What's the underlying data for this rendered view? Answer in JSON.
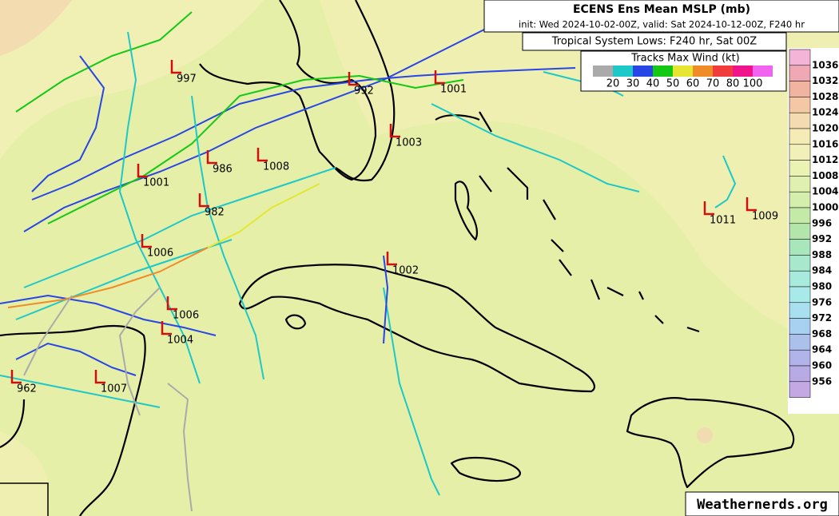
{
  "header": {
    "title": "ECENS Ens Mean MSLP (mb)",
    "subtitle": "init: Wed 2024-10-02-00Z, valid: Sat 2024-10-12-00Z, F240 hr"
  },
  "panel_title": "Tropical System Lows: F240 hr, Sat 00Z",
  "wind_legend": {
    "title": "Tracks Max Wind (kt)",
    "colors": [
      "#aaaaaa",
      "#1ec8c8",
      "#2846e6",
      "#14c814",
      "#e6e632",
      "#f08c28",
      "#f03c3c",
      "#f0148c",
      "#f064f0"
    ],
    "labels": [
      20,
      30,
      40,
      50,
      60,
      70,
      80,
      100
    ]
  },
  "pressure_scale": {
    "colors": [
      "#f4b4d8",
      "#f0a8b4",
      "#f0b4a0",
      "#f4c8a4",
      "#f4dcb0",
      "#f4ecb4",
      "#f0f0b8",
      "#eaf2b4",
      "#e0f0b0",
      "#d4eeac",
      "#c4eaa8",
      "#b4e6ac",
      "#a8e6bc",
      "#a8e8cc",
      "#a8eadc",
      "#a8eaea",
      "#a8e0f0",
      "#a8d0f0",
      "#acc0ec",
      "#b0b4e8",
      "#b8aae4",
      "#c4a8e4"
    ],
    "labels": [
      1036,
      1032,
      1028,
      1024,
      1020,
      1016,
      1012,
      1008,
      1004,
      1000,
      996,
      992,
      988,
      984,
      980,
      976,
      972,
      968,
      964,
      960,
      956
    ]
  },
  "lows": [
    997,
    992,
    1001,
    1003,
    986,
    1008,
    1001,
    982,
    1006,
    1002,
    1011,
    1009,
    1006,
    1004,
    1007,
    962
  ],
  "watermark": "Weathernerds.org"
}
